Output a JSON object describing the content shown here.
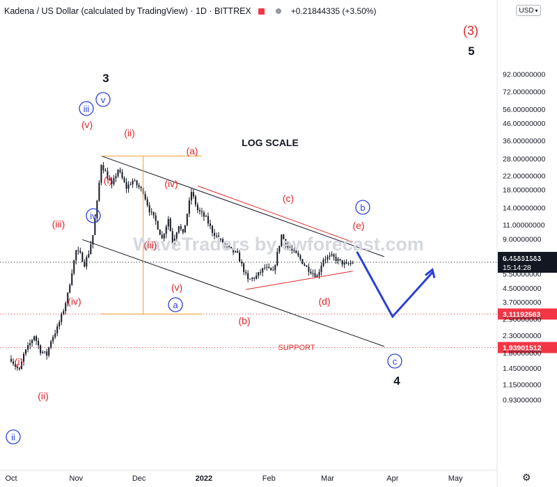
{
  "header": {
    "title": "Kadena / US Dollar (calculated by TradingView) · 1D · BITTREX",
    "change": "+0.21844335 (+3.50%)",
    "currency": "USD"
  },
  "price_labels": {
    "current": "6.45891583",
    "countdown": "15:14:28",
    "level_1": "3.11192563",
    "level_2": "1.93901512"
  },
  "colors": {
    "up_candle": "#131722",
    "red_label": "#e0252a",
    "blue_label": "#2a3fd6",
    "orange": "#f0a030",
    "price_tag_red": "#f23645",
    "price_tag_dark": "#131722"
  },
  "icons": [
    "settings-gear-icon",
    "dropdown-chevron-icon"
  ],
  "chart_data": {
    "type": "candlestick",
    "title": "Kadena / US Dollar (calculated by TradingView)",
    "interval": "1D",
    "exchange": "BITTREX",
    "y_scale": "log",
    "y_ticks": [
      "92.00000000",
      "72.00000000",
      "56.00000000",
      "46.00000000",
      "36.00000000",
      "28.00000000",
      "22.00000000",
      "18.00000000",
      "14.00000000",
      "11.00000000",
      "9.00000000",
      "7.00000000",
      "5.50000000",
      "4.50000000",
      "3.70000000",
      "2.90000000",
      "2.30000000",
      "1.80000000",
      "1.45000000",
      "1.15000000",
      "0.93000000"
    ],
    "x_ticks": [
      "Oct",
      "Nov",
      "Dec",
      "2022",
      "Feb",
      "Mar",
      "Apr",
      "May"
    ],
    "close_path": [
      [
        "2021-10-01",
        1.65
      ],
      [
        "2021-10-03",
        1.5
      ],
      [
        "2021-10-05",
        1.4
      ],
      [
        "2021-10-07",
        1.75
      ],
      [
        "2021-10-10",
        2.05
      ],
      [
        "2021-10-12",
        2.3
      ],
      [
        "2021-10-15",
        1.85
      ],
      [
        "2021-10-18",
        1.75
      ],
      [
        "2021-10-20",
        2.15
      ],
      [
        "2021-10-23",
        2.55
      ],
      [
        "2021-10-26",
        3.3
      ],
      [
        "2021-10-28",
        4.1
      ],
      [
        "2021-10-30",
        5.7
      ],
      [
        "2021-11-01",
        7.6
      ],
      [
        "2021-11-03",
        7.2
      ],
      [
        "2021-11-05",
        6.3
      ],
      [
        "2021-11-07",
        7.4
      ],
      [
        "2021-11-09",
        9.5
      ],
      [
        "2021-11-11",
        15.0
      ],
      [
        "2021-11-13",
        26.0
      ],
      [
        "2021-11-15",
        23.0
      ],
      [
        "2021-11-18",
        19.0
      ],
      [
        "2021-11-21",
        24.0
      ],
      [
        "2021-11-25",
        18.5
      ],
      [
        "2021-11-28",
        20.5
      ],
      [
        "2021-12-03",
        17.5
      ],
      [
        "2021-12-06",
        13.5
      ],
      [
        "2021-12-09",
        11.5
      ],
      [
        "2021-12-12",
        9.0
      ],
      [
        "2021-12-15",
        12.0
      ],
      [
        "2021-12-17",
        8.5
      ],
      [
        "2021-12-20",
        11.0
      ],
      [
        "2021-12-22",
        9.5
      ],
      [
        "2021-12-26",
        17.5
      ],
      [
        "2021-12-29",
        13.5
      ],
      [
        "2022-01-02",
        12.0
      ],
      [
        "2022-01-05",
        10.0
      ],
      [
        "2022-01-08",
        9.0
      ],
      [
        "2022-01-12",
        8.0
      ],
      [
        "2022-01-17",
        7.2
      ],
      [
        "2022-01-22",
        5.0
      ],
      [
        "2022-01-26",
        5.3
      ],
      [
        "2022-01-30",
        6.0
      ],
      [
        "2022-02-03",
        5.6
      ],
      [
        "2022-02-07",
        9.5
      ],
      [
        "2022-02-10",
        8.0
      ],
      [
        "2022-02-15",
        7.0
      ],
      [
        "2022-02-19",
        6.0
      ],
      [
        "2022-02-24",
        5.3
      ],
      [
        "2022-02-27",
        6.8
      ],
      [
        "2022-03-03",
        7.0
      ],
      [
        "2022-03-07",
        6.5
      ],
      [
        "2022-03-10",
        6.2
      ],
      [
        "2022-03-13",
        6.46
      ]
    ],
    "annotations": {
      "log_scale": "LOG SCALE",
      "support": "SUPPORT",
      "watermark": "WaveTraders by ewforecast.com",
      "wave_black": [
        "3",
        "5",
        "4"
      ],
      "wave_red_major": "(3)",
      "wave_red": [
        "(i)",
        "(ii)",
        "(iii)",
        "(iv)",
        "(v)",
        "(i)",
        "(ii)",
        "(iii)",
        "(iv)",
        "(v)",
        "(a)",
        "(b)",
        "(c)",
        "(d)",
        "(e)"
      ],
      "wave_blue": [
        "iii",
        "v",
        "iv",
        "ii",
        "a",
        "b",
        "c"
      ]
    },
    "forecast_path": [
      [
        "2022-03-15",
        7.5
      ],
      [
        "2022-04-01",
        3.0
      ],
      [
        "2022-04-20",
        5.6
      ]
    ]
  }
}
